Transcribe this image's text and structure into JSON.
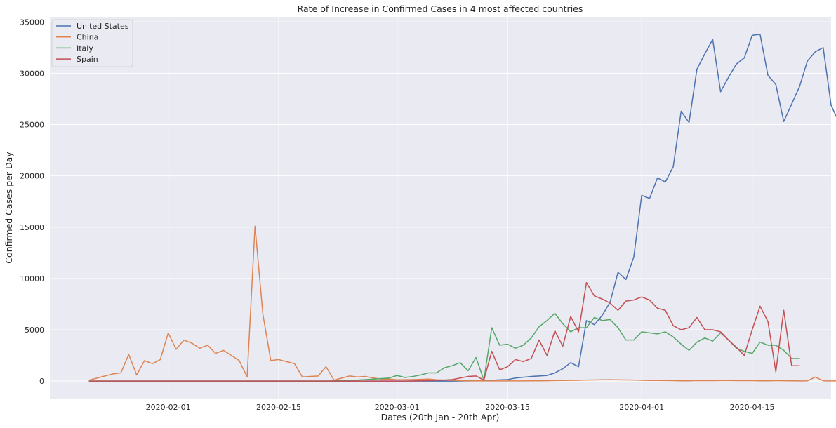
{
  "chart_data": {
    "type": "line",
    "title": "Rate of Increase in Confirmed Cases in 4 most affected countries",
    "xlabel": "Dates (20th Jan - 20th Apr)",
    "ylabel": "Confirmed Cases per Day",
    "x_start": "2020-01-22",
    "x_end": "2020-04-20",
    "xlim": [
      "2020-01-17",
      "2020-04-25"
    ],
    "ylim": [
      -1700,
      35500
    ],
    "x_ticks": [
      "2020-02-01",
      "2020-02-15",
      "2020-03-01",
      "2020-03-15",
      "2020-04-01",
      "2020-04-15"
    ],
    "y_ticks": [
      0,
      5000,
      10000,
      15000,
      20000,
      25000,
      30000,
      35000
    ],
    "grid": true,
    "legend_position": "top-left",
    "series": [
      {
        "name": "United States",
        "color": "#4c72b0",
        "values": [
          0,
          0,
          0,
          0,
          0,
          0,
          0,
          0,
          0,
          0,
          0,
          0,
          0,
          0,
          0,
          0,
          0,
          0,
          0,
          0,
          0,
          0,
          0,
          0,
          0,
          0,
          0,
          0,
          0,
          0,
          0,
          0,
          0,
          0,
          0,
          0,
          0,
          0,
          0,
          0,
          0,
          0,
          0,
          0,
          0,
          0,
          0,
          10,
          20,
          30,
          50,
          80,
          120,
          150,
          300,
          380,
          450,
          500,
          550,
          800,
          1200,
          1800,
          1400,
          5900,
          5500,
          6400,
          7700,
          10600,
          9900,
          12100,
          18100,
          17800,
          19800,
          19400,
          20900,
          26300,
          25200,
          30400,
          31900,
          33300,
          28200,
          29600,
          30900,
          31500,
          33700,
          33800,
          29800,
          28900,
          25300,
          27000,
          28700,
          31200,
          32100,
          32500,
          26900,
          25200,
          25200
        ]
      },
      {
        "name": "China",
        "color": "#dd8452",
        "values": [
          100,
          300,
          500,
          700,
          800,
          2600,
          600,
          2000,
          1700,
          2100,
          4700,
          3100,
          4000,
          3700,
          3200,
          3500,
          2700,
          3000,
          2500,
          2000,
          400,
          15100,
          6500,
          2000,
          2100,
          1900,
          1700,
          400,
          450,
          500,
          1400,
          100,
          300,
          500,
          400,
          450,
          300,
          200,
          200,
          130,
          140,
          150,
          170,
          200,
          130,
          100,
          80,
          40,
          20,
          30,
          20,
          20,
          15,
          15,
          15,
          20,
          25,
          30,
          35,
          50,
          60,
          70,
          80,
          100,
          110,
          130,
          140,
          120,
          110,
          100,
          80,
          60,
          60,
          50,
          40,
          30,
          30,
          50,
          40,
          40,
          50,
          60,
          40,
          50,
          40,
          30,
          30,
          40,
          35,
          30,
          20,
          25,
          400,
          30,
          20,
          15,
          20
        ]
      },
      {
        "name": "Italy",
        "color": "#55a868",
        "values": [
          0,
          0,
          0,
          0,
          0,
          0,
          0,
          0,
          0,
          0,
          0,
          0,
          0,
          0,
          0,
          0,
          0,
          0,
          0,
          0,
          0,
          0,
          0,
          0,
          0,
          0,
          0,
          0,
          0,
          0,
          0,
          20,
          50,
          80,
          100,
          150,
          200,
          250,
          300,
          550,
          350,
          450,
          600,
          800,
          800,
          1300,
          1500,
          1800,
          1000,
          2300,
          100,
          5200,
          3500,
          3600,
          3200,
          3500,
          4200,
          5300,
          5900,
          6600,
          5600,
          4800,
          5200,
          5200,
          6200,
          5900,
          6000,
          5200,
          4000,
          4000,
          4800,
          4700,
          4600,
          4800,
          4300,
          3600,
          3000,
          3800,
          4200,
          3900,
          4700,
          4000,
          3200,
          2900,
          2700,
          3800,
          3500,
          3500,
          3000,
          2200,
          2200
        ]
      },
      {
        "name": "Spain",
        "color": "#c44e52",
        "values": [
          0,
          0,
          0,
          0,
          0,
          0,
          0,
          0,
          0,
          0,
          0,
          0,
          0,
          0,
          0,
          0,
          0,
          0,
          0,
          0,
          0,
          0,
          0,
          0,
          0,
          0,
          0,
          0,
          0,
          0,
          0,
          0,
          0,
          0,
          0,
          0,
          0,
          0,
          0,
          0,
          0,
          20,
          30,
          50,
          80,
          100,
          150,
          300,
          450,
          500,
          100,
          2900,
          1100,
          1400,
          2100,
          1900,
          2200,
          4000,
          2500,
          4900,
          3400,
          6300,
          4800,
          9600,
          8300,
          8000,
          7600,
          6900,
          7800,
          7900,
          8200,
          7900,
          7100,
          6900,
          5400,
          5000,
          5200,
          6200,
          5000,
          5000,
          4800,
          4000,
          3300,
          2500,
          5000,
          7300,
          5800,
          900,
          6900,
          1500,
          1500
        ]
      }
    ]
  }
}
